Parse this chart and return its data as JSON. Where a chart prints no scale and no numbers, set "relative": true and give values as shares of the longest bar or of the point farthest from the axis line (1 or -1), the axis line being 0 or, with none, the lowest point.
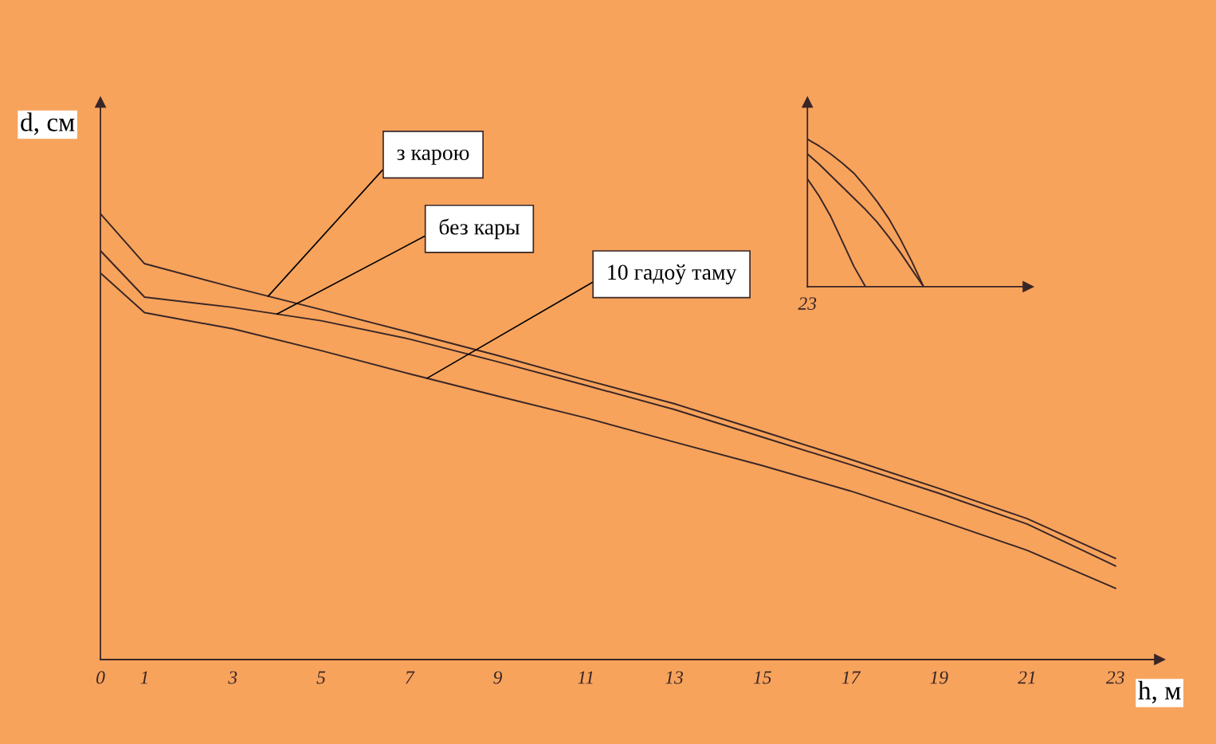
{
  "chart_data": [
    {
      "type": "line",
      "relative": true,
      "xlabel": "h, м",
      "ylabel": "d, см",
      "x": [
        0,
        1,
        3,
        5,
        7,
        9,
        11,
        13,
        15,
        17,
        19,
        21,
        23
      ],
      "xlim": [
        0,
        24
      ],
      "xticks": [
        0,
        1,
        3,
        5,
        7,
        9,
        11,
        13,
        15,
        17,
        19,
        21,
        23
      ],
      "grid": false,
      "legend": false,
      "series": [
        {
          "name": "з карою",
          "color": "#3a2626",
          "values": [
            1.0,
            0.888,
            0.835,
            0.785,
            0.734,
            0.682,
            0.627,
            0.574,
            0.512,
            0.449,
            0.384,
            0.316,
            0.227
          ]
        },
        {
          "name": "без кары",
          "color": "#3a2626",
          "values": [
            0.917,
            0.813,
            0.79,
            0.76,
            0.719,
            0.668,
            0.615,
            0.561,
            0.499,
            0.437,
            0.373,
            0.304,
            0.21
          ]
        },
        {
          "name": "10 гадоў таму",
          "color": "#3a2626",
          "values": [
            0.867,
            0.778,
            0.742,
            0.693,
            0.641,
            0.591,
            0.542,
            0.488,
            0.435,
            0.378,
            0.313,
            0.245,
            0.16
          ]
        }
      ]
    },
    {
      "type": "line",
      "relative": true,
      "annotations": [
        "23"
      ],
      "categories": [
        null,
        null,
        null,
        null,
        null,
        null,
        null,
        null,
        null,
        null,
        null,
        null,
        null,
        null,
        null,
        null,
        null,
        null,
        null,
        null
      ],
      "legend": false,
      "series": [
        {
          "color": "#3a2626",
          "values": [
            1.0,
            0.954,
            0.9,
            0.838,
            0.769,
            0.677,
            0.577,
            0.462,
            0.323,
            0.169,
            0.0,
            null,
            null,
            null,
            null,
            null,
            null,
            null,
            null,
            null
          ]
        },
        {
          "color": "#3a2626",
          "values": [
            0.9,
            0.831,
            0.754,
            0.677,
            0.6,
            0.523,
            0.438,
            0.338,
            0.231,
            0.115,
            0.0,
            null,
            null,
            null,
            null,
            null,
            null,
            null,
            null,
            null
          ]
        },
        {
          "color": "#3a2626",
          "values": [
            0.731,
            0.615,
            0.477,
            0.308,
            0.138,
            0.0,
            null,
            null,
            null,
            null,
            null,
            null,
            null,
            null,
            null,
            null,
            null,
            null,
            null,
            null
          ]
        }
      ]
    }
  ]
}
